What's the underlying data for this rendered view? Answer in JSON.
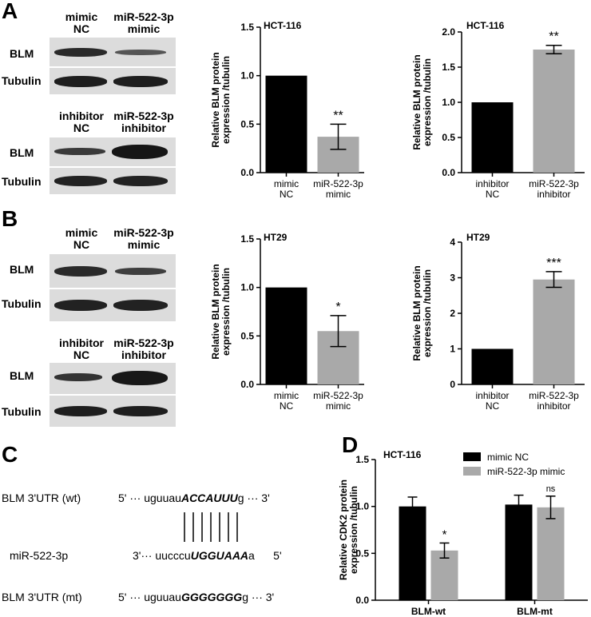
{
  "panels": {
    "A": "A",
    "B": "B",
    "C": "C",
    "D": "D"
  },
  "blots": {
    "mimic_lanes": [
      "mimic\nNC",
      "miR-522-3p\nmimic"
    ],
    "inhibitor_lanes": [
      "inhibitor\nNC",
      "miR-522-3p\ninhibitor"
    ],
    "row_blm": "BLM",
    "row_tubulin": "Tubulin"
  },
  "chart_data": [
    {
      "id": "A-mimic",
      "type": "bar",
      "title": "HCT-116",
      "ylabel": "Relative BLM protein\nexpression /tubulin",
      "categories": [
        "mimic\nNC",
        "miR-522-3p\nmimic"
      ],
      "values": [
        1.0,
        0.37
      ],
      "errors": [
        0,
        0.13
      ],
      "significance": [
        "",
        "**"
      ],
      "colors": [
        "#000000",
        "#a9a9a9"
      ],
      "ylim": [
        0,
        1.5
      ],
      "yticks": [
        "0.0",
        "0.5",
        "1.0",
        "1.5"
      ]
    },
    {
      "id": "A-inhibitor",
      "type": "bar",
      "title": "HCT-116",
      "ylabel": "Relative BLM protein\nexpression /tubulin",
      "categories": [
        "inhibitor\nNC",
        "miR-522-3p\ninhibitor"
      ],
      "values": [
        1.0,
        1.75
      ],
      "errors": [
        0,
        0.06
      ],
      "significance": [
        "",
        "**"
      ],
      "colors": [
        "#000000",
        "#a9a9a9"
      ],
      "ylim": [
        0,
        2.0
      ],
      "yticks": [
        "0.0",
        "0.5",
        "1.0",
        "1.5",
        "2.0"
      ]
    },
    {
      "id": "B-mimic",
      "type": "bar",
      "title": "HT29",
      "ylabel": "Relative BLM protein\nexpression /tubulin",
      "categories": [
        "mimic\nNC",
        "miR-522-3p\nmimic"
      ],
      "values": [
        1.0,
        0.55
      ],
      "errors": [
        0,
        0.16
      ],
      "significance": [
        "",
        "*"
      ],
      "colors": [
        "#000000",
        "#a9a9a9"
      ],
      "ylim": [
        0,
        1.5
      ],
      "yticks": [
        "0.0",
        "0.5",
        "1.0",
        "1.5"
      ]
    },
    {
      "id": "B-inhibitor",
      "type": "bar",
      "title": "HT29",
      "ylabel": "Relative BLM protein\nexpression /tubulin",
      "categories": [
        "inhibitor\nNC",
        "miR-522-3p\ninhibitor"
      ],
      "values": [
        1.0,
        2.95
      ],
      "errors": [
        0,
        0.22
      ],
      "significance": [
        "",
        "***"
      ],
      "colors": [
        "#000000",
        "#a9a9a9"
      ],
      "ylim": [
        0,
        4
      ],
      "yticks": [
        "0",
        "1",
        "2",
        "3",
        "4"
      ]
    },
    {
      "id": "D",
      "type": "bar",
      "title": "HCT-116",
      "ylabel": "Relative CDK2 protein\nexpression /tubulin",
      "categories": [
        "BLM-wt",
        "BLM-mt"
      ],
      "series": [
        {
          "name": "mimic NC",
          "values": [
            1.0,
            1.02
          ],
          "errors": [
            0.1,
            0.1
          ],
          "color": "#000000"
        },
        {
          "name": "miR-522-3p mimic",
          "values": [
            0.53,
            0.99
          ],
          "errors": [
            0.08,
            0.12
          ],
          "color": "#a9a9a9"
        }
      ],
      "significance": [
        [
          "",
          "*"
        ],
        [
          "",
          "ns"
        ]
      ],
      "ylim": [
        0,
        1.5
      ],
      "yticks": [
        "0.0",
        "0.5",
        "1.0",
        "1.5"
      ],
      "legend": "top-right"
    }
  ],
  "sequences": {
    "wt_label": "BLM 3'UTR (wt)",
    "wt_prefix": "5' ··· uguuau",
    "wt_seed": "ACCAUUU",
    "wt_suffix": "g ··· 3'",
    "mir_label": "miR-522-3p",
    "mir_prefix": "3'··· uucccu",
    "mir_seed": "UGGUAAA",
    "mir_suffix": "a      5'",
    "mt_label": "BLM 3'UTR (mt)",
    "mt_prefix": "5' ··· uguuau",
    "mt_seed": "GGGGGGG",
    "mt_suffix": "g ··· 3'"
  }
}
